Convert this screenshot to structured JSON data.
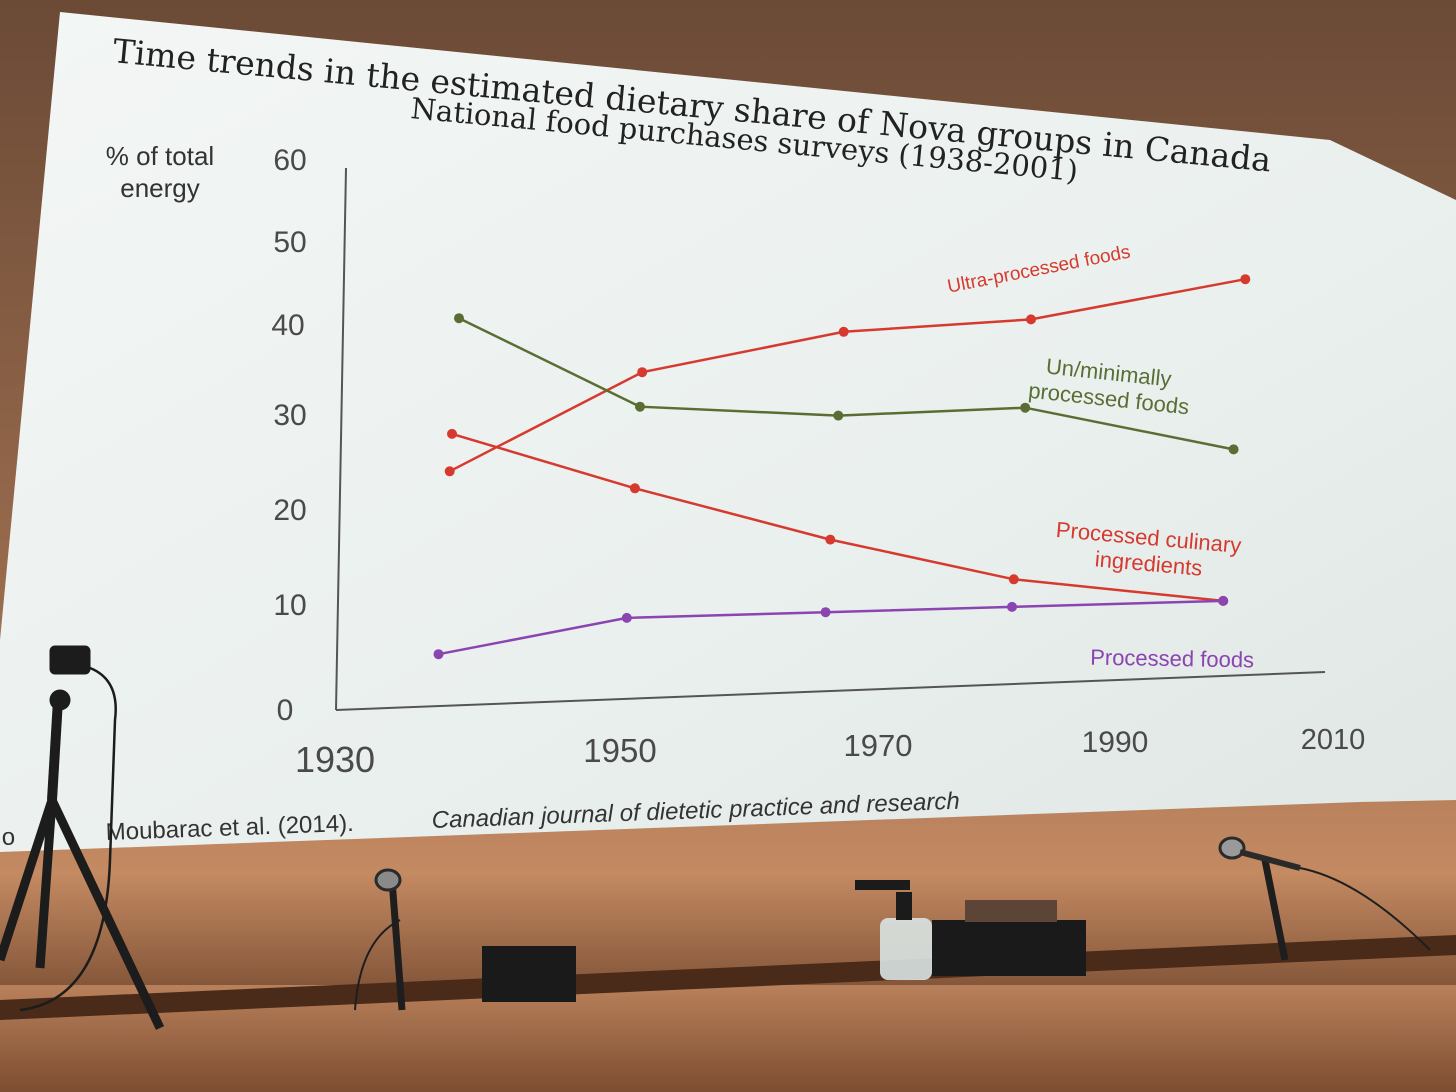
{
  "slide": {
    "title": "Time trends in the estimated dietary share of Nova groups in Canada",
    "subtitle": "National food purchases surveys (1938-2001)",
    "citation_prefix": "o",
    "citation_visible": "Moubarac et al. (2014).",
    "citation_journal": "Canadian journal of dietetic practice and research"
  },
  "chart_data": {
    "type": "line",
    "ylabel": "% of total energy",
    "ylabel_lines": [
      "% of total",
      "energy"
    ],
    "xlabel": "",
    "xlim": [
      1930,
      2010
    ],
    "ylim": [
      0,
      60
    ],
    "xticks": [
      1930,
      1950,
      1970,
      1990,
      2010
    ],
    "yticks": [
      0,
      10,
      20,
      30,
      40,
      50,
      60
    ],
    "grid": false,
    "legend": "inline labels next to series",
    "series": [
      {
        "name": "Ultra-processed foods",
        "label_lines": [
          "Ultra-processed foods"
        ],
        "color": "#d63a2f",
        "points": [
          [
            1938,
            24
          ],
          [
            1953,
            35
          ],
          [
            1969,
            40
          ],
          [
            1984,
            42
          ],
          [
            2001,
            48
          ]
        ]
      },
      {
        "name": "Un/minimally processed foods",
        "label_lines": [
          "Un/minimally",
          "processed foods"
        ],
        "color": "#5a6e34",
        "points": [
          [
            1938,
            41
          ],
          [
            1953,
            31
          ],
          [
            1969,
            30
          ],
          [
            1984,
            31
          ],
          [
            2001,
            26
          ]
        ]
      },
      {
        "name": "Processed culinary ingredients",
        "label_lines": [
          "Processed culinary",
          "ingredients"
        ],
        "color": "#d63a2f",
        "points": [
          [
            1938,
            28
          ],
          [
            1953,
            22
          ],
          [
            1969,
            16
          ],
          [
            1984,
            11
          ],
          [
            2001,
            8
          ]
        ]
      },
      {
        "name": "Processed foods",
        "label_lines": [
          "Processed foods"
        ],
        "color": "#8a45b0",
        "points": [
          [
            1938,
            5
          ],
          [
            1953,
            8
          ],
          [
            1969,
            8
          ],
          [
            1984,
            8
          ],
          [
            2001,
            8
          ]
        ]
      }
    ]
  },
  "colors": {
    "screen": "#eef2f1",
    "axis": "#555555",
    "title": "#222222",
    "tick_text": "#4a4a4a"
  }
}
